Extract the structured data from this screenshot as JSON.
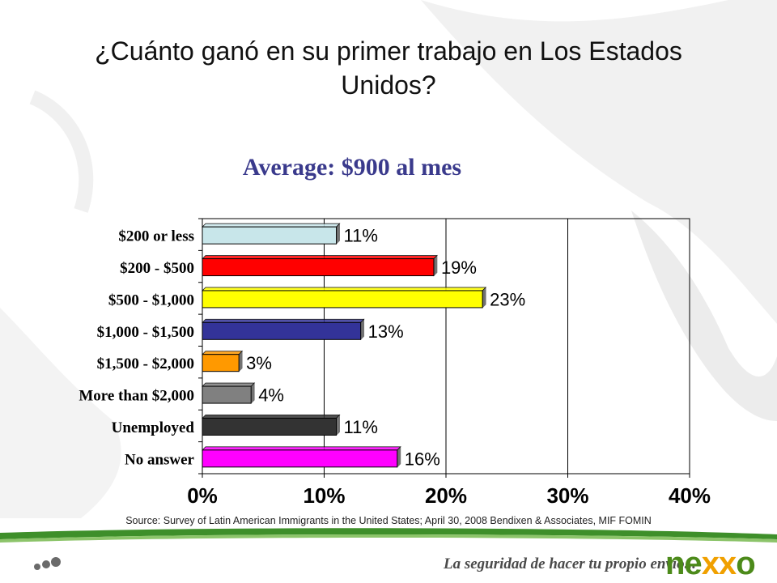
{
  "slide": {
    "title": "¿Cuánto ganó en su primer trabajo en Los Estados Unidos?",
    "subtitle": "Average:  $900 al mes",
    "source": "Source: Survey of Latin American Immigrants in the United States; April 30, 2008  Bendixen & Associates, MIF  FOMIN",
    "tagline": "La seguridad de hacer tu propio envío...",
    "logo_text": "nexxo",
    "colors": {
      "title": "#111111",
      "subtitle": "#3a3a8c",
      "footer_green": "#3e8f2a",
      "logo_green": "#4c8a1a",
      "logo_orange": "#f0a000"
    }
  },
  "chart_data": {
    "type": "bar",
    "orientation": "horizontal",
    "categories": [
      "$200 or less",
      "$200 - $500",
      "$500 - $1,000",
      "$1,000 - $1,500",
      "$1,500 - $2,000",
      "More than $2,000",
      "Unemployed",
      "No answer"
    ],
    "values": [
      11,
      19,
      23,
      13,
      3,
      4,
      11,
      16
    ],
    "value_labels": [
      "11%",
      "19%",
      "23%",
      "13%",
      "3%",
      "4%",
      "11%",
      "16%"
    ],
    "colors": [
      "#c8e6ea",
      "#ff0000",
      "#ffff00",
      "#333399",
      "#ff9900",
      "#808080",
      "#333333",
      "#ff00ff"
    ],
    "xlim": [
      0,
      40
    ],
    "xticks": [
      0,
      10,
      20,
      30,
      40
    ],
    "xtick_labels": [
      "0%",
      "10%",
      "20%",
      "30%",
      "40%"
    ],
    "grid": true
  }
}
